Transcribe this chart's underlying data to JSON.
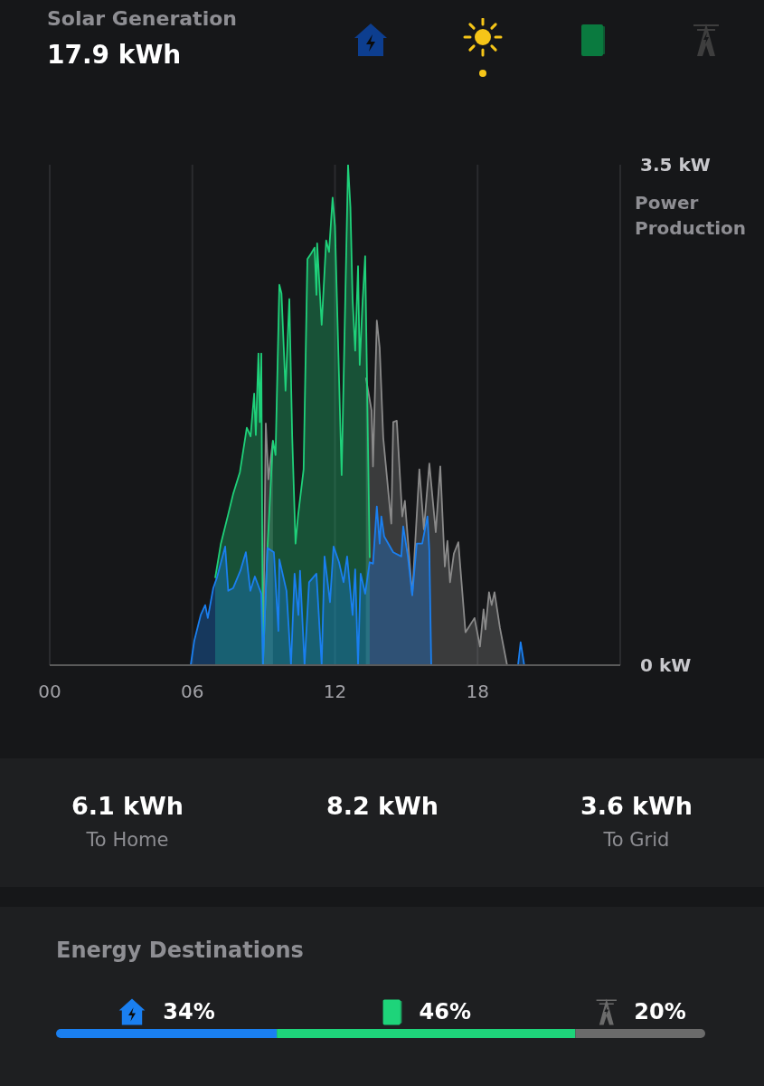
{
  "chart_data": [
    {
      "type": "area",
      "title": "Solar Generation",
      "subtitle": "17.9 kWh",
      "ylabel": "Power Production",
      "xlim": [
        0,
        24
      ],
      "xticks": [
        {
          "value": 0,
          "label": "00"
        },
        {
          "value": 6,
          "label": "06"
        },
        {
          "value": 12,
          "label": "12"
        },
        {
          "value": 18,
          "label": "18"
        }
      ],
      "ylim": [
        0,
        3.5
      ],
      "yticks": [
        {
          "value": 0,
          "label": "0 kW"
        },
        {
          "value": 3.5,
          "label": "3.5 kW"
        }
      ],
      "grid": "x",
      "series": [
        {
          "color": "#8a8a8a",
          "x": [
            8.97,
            9.09,
            9.2,
            9.3,
            9.39,
            11,
            13.3,
            13.54,
            13.6,
            13.76,
            13.88,
            14.03,
            14.37,
            14.45,
            14.6,
            14.83,
            14.94,
            15.25,
            15.55,
            15.74,
            15.97,
            16.24,
            16.43,
            16.62,
            16.73,
            16.84,
            17.0,
            17.19,
            17.49,
            17.87,
            18.1,
            18.25,
            18.33,
            18.48,
            18.59,
            18.71,
            18.94,
            19.09,
            19.24
          ],
          "values": [
            0,
            1.69,
            1.3,
            1.45,
            1.57,
            null,
            2.01,
            1.78,
            1.39,
            2.41,
            2.22,
            1.59,
            0.99,
            1.7,
            1.71,
            1.04,
            1.15,
            0.49,
            1.37,
            0.95,
            1.41,
            0.93,
            1.39,
            0.69,
            0.87,
            0.58,
            0.78,
            0.86,
            0.23,
            0.33,
            0.13,
            0.39,
            0.25,
            0.51,
            0.42,
            0.51,
            0.26,
            0.13,
            0
          ]
        },
        {
          "color": "#1fd17a",
          "x": [
            6.96,
            7.2,
            7.5,
            7.72,
            8.0,
            8.29,
            8.45,
            8.6,
            8.67,
            8.78,
            8.84,
            8.9,
            8.97,
            9.16,
            9.39,
            9.5,
            9.66,
            9.75,
            9.92,
            10.08,
            10.2,
            10.34,
            10.45,
            10.68,
            10.84,
            11.0,
            11.14,
            11.22,
            11.25,
            11.44,
            11.63,
            11.75,
            11.9,
            12.0,
            12.28,
            12.55,
            12.65,
            12.74,
            12.85,
            12.97,
            13.04,
            13.16,
            13.27,
            13.46
          ],
          "values": [
            0.61,
            0.85,
            1.05,
            1.2,
            1.35,
            1.66,
            1.6,
            1.9,
            1.61,
            2.18,
            1.7,
            2.18,
            0,
            0.82,
            1.57,
            1.47,
            2.66,
            2.6,
            1.92,
            2.56,
            1.6,
            0.85,
            1.05,
            1.37,
            2.84,
            2.88,
            2.92,
            2.59,
            2.95,
            2.38,
            2.97,
            2.89,
            3.27,
            3.07,
            1.33,
            3.5,
            3.2,
            2.56,
            2.2,
            2.79,
            2.1,
            2.54,
            2.86,
            0.75
          ]
        },
        {
          "color": "#1a7ff0",
          "x": [
            5.93,
            6.08,
            6.35,
            6.54,
            6.65,
            6.88,
            7.03,
            7.38,
            7.51,
            7.72,
            8.02,
            8.25,
            8.44,
            8.63,
            8.9,
            8.97,
            9.16,
            9.43,
            9.62,
            9.66,
            9.96,
            10.15,
            10.3,
            10.46,
            10.53,
            10.72,
            10.91,
            11.22,
            11.44,
            11.56,
            11.79,
            11.94,
            12.17,
            12.36,
            12.51,
            12.74,
            12.85,
            12.97,
            13.08,
            13.27,
            13.46,
            13.6,
            13.76,
            13.88,
            13.95,
            14.07,
            14.45,
            14.79,
            14.87,
            15.06,
            15.25,
            15.44,
            15.67,
            15.89,
            15.97,
            16.05,
            17.5,
            19.7,
            19.81,
            19.96
          ],
          "values": [
            0,
            0.17,
            0.35,
            0.42,
            0.33,
            0.54,
            0.61,
            0.83,
            0.52,
            0.54,
            0.66,
            0.79,
            0.52,
            0.62,
            0.5,
            0,
            0.82,
            0.79,
            0.24,
            0.74,
            0.52,
            0,
            0.64,
            0.35,
            0.66,
            0,
            0.58,
            0.64,
            0,
            0.76,
            0.44,
            0.83,
            0.72,
            0.58,
            0.76,
            0.35,
            0.67,
            0,
            0.64,
            0.5,
            0.72,
            0.71,
            1.11,
            0.85,
            1.04,
            0.9,
            0.79,
            0.76,
            0.97,
            0.77,
            0.49,
            0.85,
            0.85,
            1.04,
            0.8,
            0,
            null,
            0,
            0.16,
            0
          ]
        }
      ]
    },
    {
      "type": "other",
      "annotations": [
        "6.1 kWh",
        "To Home",
        "8.2 kWh",
        "3.6 kWh",
        "To Grid"
      ]
    },
    {
      "type": "bar",
      "title": "Energy Destinations",
      "orientation": "horizontal",
      "stacked": true,
      "categories": [
        null
      ],
      "series": [
        {
          "color": "#1a7ff0",
          "values": [
            34
          ],
          "value_labels": [
            "34%"
          ]
        },
        {
          "color": "#1ed47a",
          "values": [
            46
          ],
          "value_labels": [
            "46%"
          ]
        },
        {
          "color": "#6b6b6b",
          "values": [
            20
          ],
          "value_labels": [
            "20%"
          ]
        }
      ]
    }
  ]
}
